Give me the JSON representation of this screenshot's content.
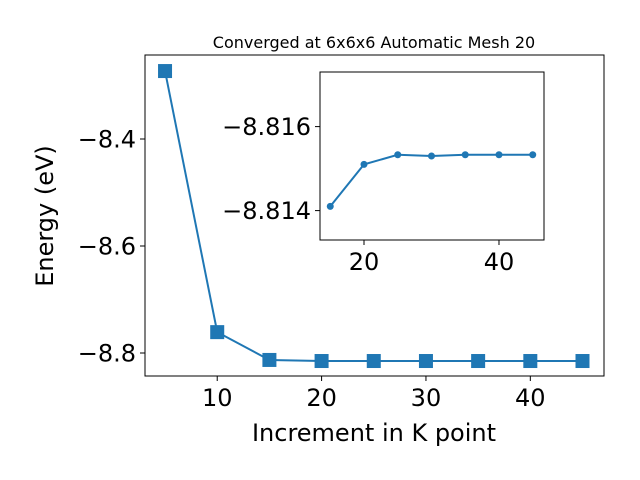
{
  "chart_data": [
    {
      "type": "line",
      "title": "Converged at 6x6x6 Automatic Mesh 20",
      "x_label": "Increment in K point",
      "y_label": "Energy (eV)",
      "marker": "square",
      "series": [
        {
          "color": "#1f77b4",
          "x": [
            5,
            10,
            15,
            20,
            25,
            30,
            35,
            40,
            45
          ],
          "values": [
            -8.273,
            -8.761,
            -8.813,
            -8.815,
            -8.815,
            -8.815,
            -8.815,
            -8.815,
            -8.815
          ]
        }
      ],
      "xlim": [
        3.08,
        47.06
      ],
      "ylim": [
        -8.843,
        -8.243
      ],
      "xticks": [
        10,
        20,
        30,
        40
      ],
      "yticks": [
        {
          "value": -8.4,
          "label": "−8.4"
        },
        {
          "value": -8.6,
          "label": "−8.6"
        },
        {
          "value": -8.8,
          "label": "−8.8"
        }
      ]
    },
    {
      "type": "line",
      "marker": "circle",
      "series": [
        {
          "color": "#1f77b4",
          "x": [
            15,
            20,
            25,
            30,
            35,
            40,
            45
          ],
          "values": [
            -8.8141,
            -8.8151,
            -8.81533,
            -8.8153,
            -8.81533,
            -8.81533,
            -8.81533
          ]
        }
      ],
      "xlim": [
        13.48,
        46.67
      ],
      "ylim": [
        -8.8133,
        -8.8173
      ],
      "xticks": [
        20,
        40
      ],
      "yticks": [
        {
          "value": -8.816,
          "label": "−8.816"
        },
        {
          "value": -8.814,
          "label": "−8.814"
        }
      ]
    }
  ]
}
